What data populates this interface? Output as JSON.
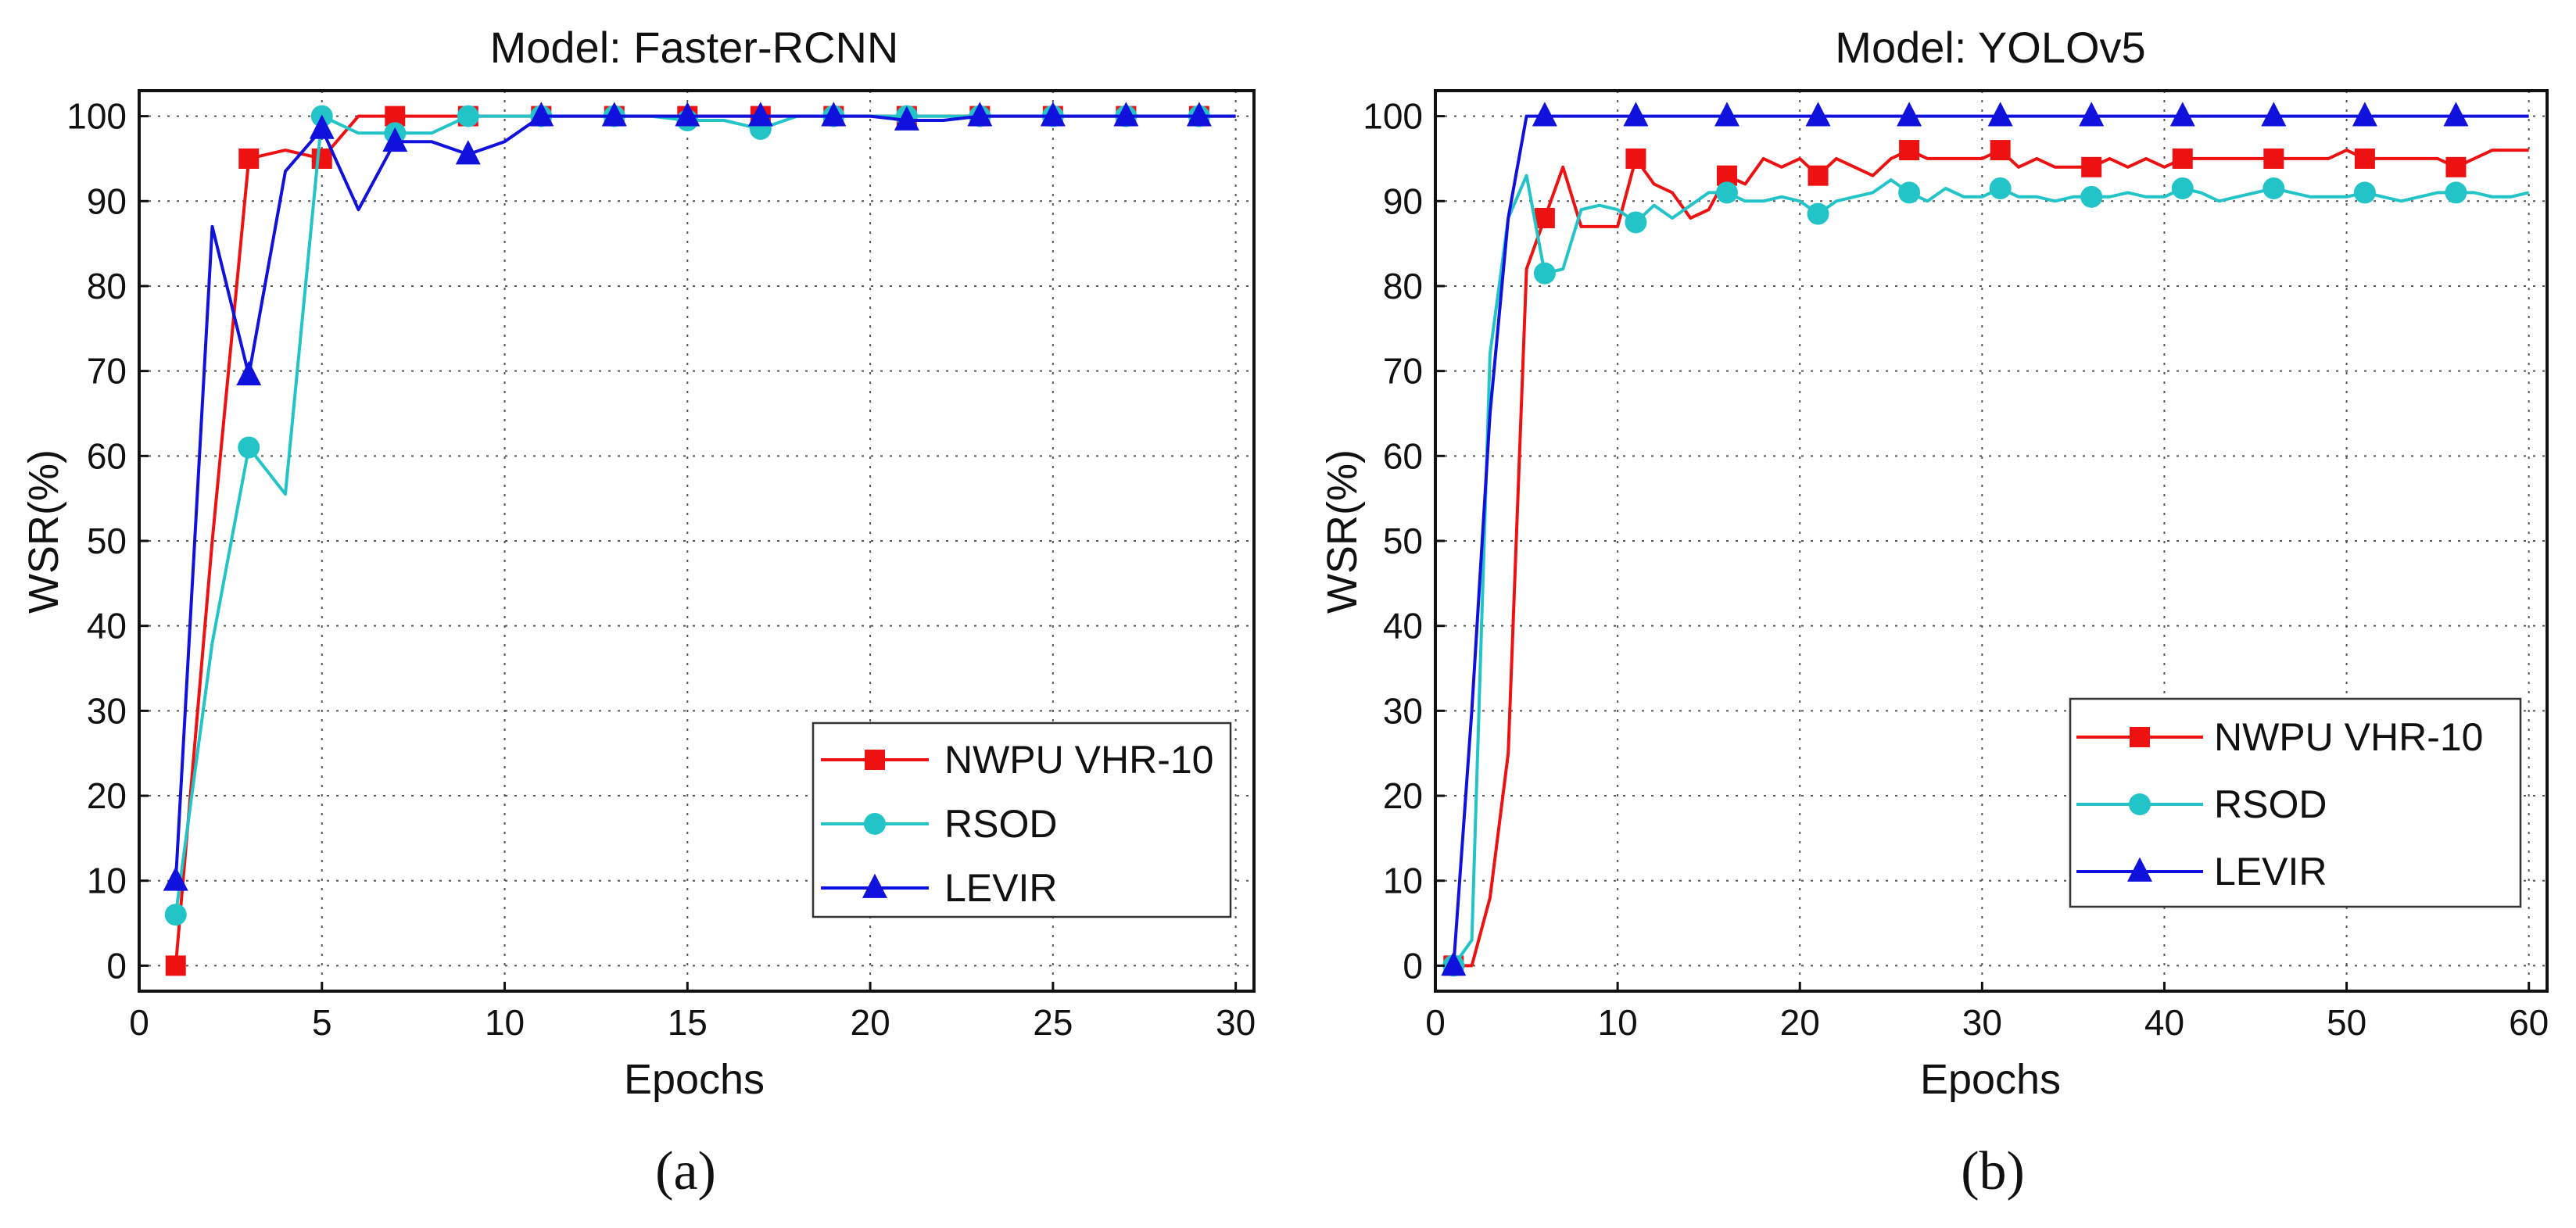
{
  "colors": {
    "nwpu": "#ee1111",
    "rsod": "#22c4c8",
    "levir": "#1111dd"
  },
  "chart_data": [
    {
      "type": "line",
      "panel": "a",
      "title": "Model: Faster-RCNN",
      "xlabel": "Epochs",
      "ylabel": "WSR(%)",
      "caption": "(a)",
      "xlim": [
        0,
        30.5
      ],
      "ylim": [
        -3,
        103
      ],
      "xticks": [
        0,
        5,
        10,
        15,
        20,
        25,
        30
      ],
      "yticks": [
        0,
        10,
        20,
        30,
        40,
        50,
        60,
        70,
        80,
        90,
        100
      ],
      "grid": true,
      "legend_position": "lower-right",
      "series": [
        {
          "name": "NWPU VHR-10",
          "color": "#ee1111",
          "marker": "square",
          "marker_every": 2,
          "x": [
            1,
            2,
            3,
            4,
            5,
            6,
            7,
            8,
            9,
            10,
            11,
            12,
            13,
            14,
            15,
            16,
            17,
            18,
            19,
            20,
            21,
            22,
            23,
            24,
            25,
            26,
            27,
            28,
            29,
            30
          ],
          "y": [
            0,
            50,
            95,
            96,
            95,
            100,
            100,
            100,
            100,
            100,
            100,
            100,
            100,
            100,
            100,
            100,
            100,
            100,
            100,
            100,
            100,
            100,
            100,
            100,
            100,
            100,
            100,
            100,
            100,
            100
          ]
        },
        {
          "name": "RSOD",
          "color": "#22c4c8",
          "marker": "circle",
          "marker_every": 2,
          "x": [
            1,
            2,
            3,
            4,
            5,
            6,
            7,
            8,
            9,
            10,
            11,
            12,
            13,
            14,
            15,
            16,
            17,
            18,
            19,
            20,
            21,
            22,
            23,
            24,
            25,
            26,
            27,
            28,
            29,
            30
          ],
          "y": [
            6,
            38,
            61,
            55.5,
            100,
            98,
            98,
            98,
            100,
            100,
            100,
            100,
            100,
            100,
            99.5,
            99.5,
            98.5,
            100,
            100,
            100,
            100,
            100,
            100,
            100,
            100,
            100,
            100,
            100,
            100,
            100
          ]
        },
        {
          "name": "LEVIR",
          "color": "#1111dd",
          "marker": "triangle",
          "marker_every": 2,
          "x": [
            1,
            2,
            3,
            4,
            5,
            6,
            7,
            8,
            9,
            10,
            11,
            12,
            13,
            14,
            15,
            16,
            17,
            18,
            19,
            20,
            21,
            22,
            23,
            24,
            25,
            26,
            27,
            28,
            29,
            30
          ],
          "y": [
            10,
            87,
            69.5,
            93.5,
            98.5,
            89,
            97,
            97,
            95.5,
            97,
            100,
            100,
            100,
            100,
            100,
            100,
            100,
            100,
            100,
            100,
            99.5,
            99.5,
            100,
            100,
            100,
            100,
            100,
            100,
            100,
            100
          ]
        }
      ]
    },
    {
      "type": "line",
      "panel": "b",
      "title": "Model: YOLOv5",
      "xlabel": "Epochs",
      "ylabel": "WSR(%)",
      "caption": "(b)",
      "xlim": [
        0,
        61
      ],
      "ylim": [
        -3,
        103
      ],
      "xticks": [
        0,
        10,
        20,
        30,
        40,
        50,
        60
      ],
      "yticks": [
        0,
        10,
        20,
        30,
        40,
        50,
        60,
        70,
        80,
        90,
        100
      ],
      "grid": true,
      "legend_position": "lower-right",
      "series": [
        {
          "name": "NWPU VHR-10",
          "color": "#ee1111",
          "marker": "square",
          "marker_every": 5,
          "x": [
            1,
            2,
            3,
            4,
            5,
            6,
            7,
            8,
            9,
            10,
            11,
            12,
            13,
            14,
            15,
            16,
            17,
            18,
            19,
            20,
            21,
            22,
            23,
            24,
            25,
            26,
            27,
            28,
            29,
            30,
            31,
            32,
            33,
            34,
            35,
            36,
            37,
            38,
            39,
            40,
            41,
            42,
            43,
            44,
            45,
            46,
            47,
            48,
            49,
            50,
            51,
            52,
            53,
            54,
            55,
            56,
            57,
            58,
            59,
            60
          ],
          "y": [
            0,
            0,
            8,
            25,
            82,
            88,
            94,
            87,
            87,
            87,
            95,
            92,
            91,
            88,
            89,
            93,
            92,
            95,
            94,
            95,
            93,
            95,
            94,
            93,
            95,
            96,
            95,
            95,
            95,
            95,
            96,
            94,
            95,
            94,
            94,
            94,
            95,
            94,
            95,
            94,
            95,
            95,
            95,
            95,
            95,
            95,
            95,
            95,
            95,
            96,
            95,
            95,
            95,
            95,
            95,
            94,
            95,
            96,
            96,
            96
          ]
        },
        {
          "name": "RSOD",
          "color": "#22c4c8",
          "marker": "circle",
          "marker_every": 5,
          "x": [
            1,
            2,
            3,
            4,
            5,
            6,
            7,
            8,
            9,
            10,
            11,
            12,
            13,
            14,
            15,
            16,
            17,
            18,
            19,
            20,
            21,
            22,
            23,
            24,
            25,
            26,
            27,
            28,
            29,
            30,
            31,
            32,
            33,
            34,
            35,
            36,
            37,
            38,
            39,
            40,
            41,
            42,
            43,
            44,
            45,
            46,
            47,
            48,
            49,
            50,
            51,
            52,
            53,
            54,
            55,
            56,
            57,
            58,
            59,
            60
          ],
          "y": [
            0,
            3,
            72,
            88,
            93,
            81.5,
            82,
            89,
            89.5,
            89,
            87.5,
            89.5,
            88,
            89.5,
            91,
            91,
            90,
            90,
            90.5,
            90,
            88.5,
            90,
            90.5,
            91,
            92.5,
            91,
            90,
            91.5,
            90.5,
            90.5,
            91.5,
            90.5,
            90.5,
            90,
            90.5,
            90.5,
            90.5,
            91,
            90.5,
            90.5,
            91.5,
            91,
            90,
            90.5,
            91,
            91.5,
            91,
            90.5,
            90.5,
            90.5,
            91,
            90.5,
            90,
            90.5,
            91,
            91,
            91,
            90.5,
            90.5,
            91
          ]
        },
        {
          "name": "LEVIR",
          "color": "#1111dd",
          "marker": "triangle",
          "marker_every": 5,
          "x": [
            1,
            2,
            3,
            4,
            5,
            6,
            7,
            8,
            9,
            10,
            11,
            12,
            13,
            14,
            15,
            16,
            17,
            18,
            19,
            20,
            21,
            22,
            23,
            24,
            25,
            26,
            27,
            28,
            29,
            30,
            31,
            32,
            33,
            34,
            35,
            36,
            37,
            38,
            39,
            40,
            41,
            42,
            43,
            44,
            45,
            46,
            47,
            48,
            49,
            50,
            51,
            52,
            53,
            54,
            55,
            56,
            57,
            58,
            59,
            60
          ],
          "y": [
            0,
            30,
            65,
            88,
            100,
            100,
            100,
            100,
            100,
            100,
            100,
            100,
            100,
            100,
            100,
            100,
            100,
            100,
            100,
            100,
            100,
            100,
            100,
            100,
            100,
            100,
            100,
            100,
            100,
            100,
            100,
            100,
            100,
            100,
            100,
            100,
            100,
            100,
            100,
            100,
            100,
            100,
            100,
            100,
            100,
            100,
            100,
            100,
            100,
            100,
            100,
            100,
            100,
            100,
            100,
            100,
            100,
            100,
            100,
            100
          ]
        }
      ]
    }
  ]
}
